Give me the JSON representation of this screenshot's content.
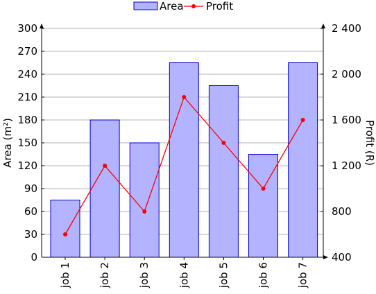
{
  "chart_data": {
    "type": "bar",
    "categories": [
      "job 1",
      "job 2",
      "job 3",
      "job 4",
      "job 5",
      "job 6",
      "job 7"
    ],
    "series": [
      {
        "name": "Area",
        "kind": "bar",
        "axis": "left",
        "values": [
          75,
          180,
          150,
          255,
          225,
          135,
          255
        ],
        "fill": "#b3b3ff",
        "stroke": "#0000cc"
      },
      {
        "name": "Profit",
        "kind": "line",
        "axis": "right",
        "values": [
          600,
          1200,
          800,
          1800,
          1400,
          1000,
          1600
        ],
        "color": "#ff0000"
      }
    ],
    "ylabel_left": "Area (m²)",
    "ylabel_right": "Profit (R)",
    "ylim_left": [
      0,
      300
    ],
    "ylim_right": [
      400,
      2400
    ],
    "yticks_left": [
      0,
      30,
      60,
      90,
      120,
      150,
      180,
      210,
      240,
      270,
      300
    ],
    "yticks_right": [
      400,
      800,
      1200,
      1600,
      2000,
      2400
    ],
    "ytick_labels_right": [
      "400",
      "800",
      "1 200",
      "1 600",
      "2 000",
      "2 400"
    ],
    "grid": true,
    "legend_position": "top-center"
  }
}
